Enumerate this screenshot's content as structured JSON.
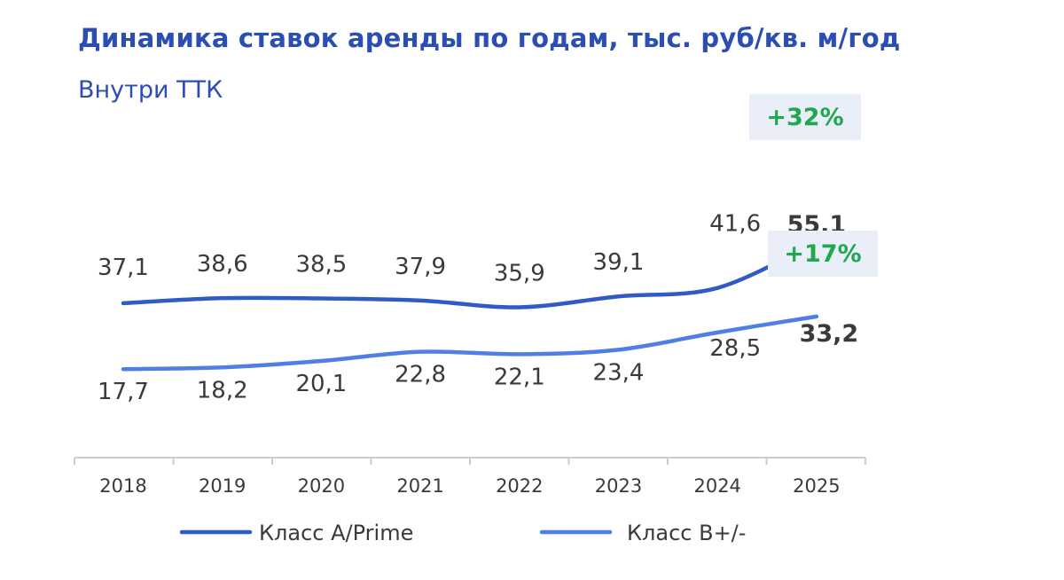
{
  "header": {
    "title": "Динамика ставок аренды по годам, тыс. руб/кв. м/год",
    "subtitle": "Внутри ТТК"
  },
  "colors": {
    "title": "#2b4eb5",
    "series_a": "#2f5bc4",
    "series_b": "#4f7fe6",
    "badge_bg": "#e9eef8",
    "badge_text": "#1fa84e",
    "axis": "#cccccc",
    "label_text": "#3a3a3a"
  },
  "chart_data": {
    "type": "line",
    "categories": [
      "2018",
      "2019",
      "2020",
      "2021",
      "2022",
      "2023",
      "2024",
      "2025"
    ],
    "series": [
      {
        "name": "Класс A/Prime",
        "values": [
          37.1,
          38.6,
          38.5,
          37.9,
          35.9,
          39.1,
          41.6,
          55.1
        ],
        "labels": [
          "37,1",
          "38,6",
          "38,5",
          "37,9",
          "35,9",
          "39,1",
          "41,6",
          "55,1"
        ],
        "badge": "+32%"
      },
      {
        "name": "Класс B+/-",
        "values": [
          17.7,
          18.2,
          20.1,
          22.8,
          22.1,
          23.4,
          28.5,
          33.2
        ],
        "labels": [
          "17,7",
          "18,2",
          "20,1",
          "22,8",
          "22,1",
          "23,4",
          "28,5",
          "33,2"
        ],
        "badge": "+17%"
      }
    ],
    "grid": false,
    "legend_position": "bottom"
  }
}
